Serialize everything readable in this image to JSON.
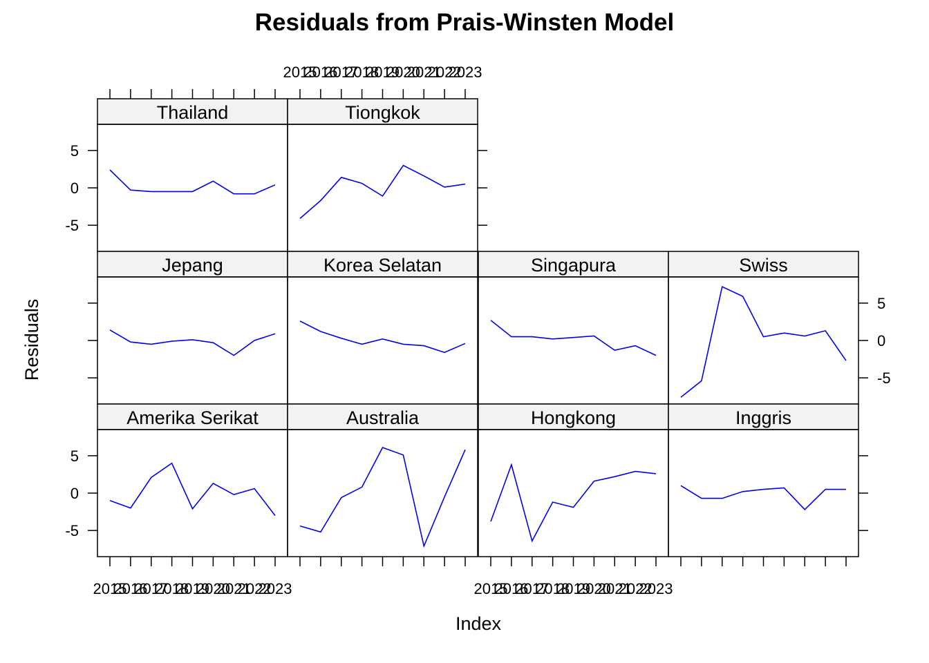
{
  "chart_data": {
    "type": "line",
    "title": "Residuals from Prais-Winsten Model",
    "xlabel": "Index",
    "ylabel": "Residuals",
    "x": [
      2015,
      2016,
      2017,
      2018,
      2019,
      2020,
      2021,
      2022,
      2023
    ],
    "x_tick_labels": [
      "2015",
      "2016",
      "2017",
      "2018",
      "2019",
      "2020",
      "2021",
      "2022",
      "2023"
    ],
    "y_ticks": [
      -5,
      0,
      5
    ],
    "y_tick_labels": [
      "-5",
      "0",
      "5"
    ],
    "ylim": [
      -8.5,
      8.5
    ],
    "grid": false,
    "line_color": "#0000ee",
    "strip_color": "#f2f2f2",
    "panels": [
      {
        "name": "Thailand",
        "values": [
          2.4,
          -0.3,
          -0.5,
          -0.5,
          -0.5,
          0.9,
          -0.8,
          -0.8,
          0.4
        ]
      },
      {
        "name": "Tiongkok",
        "values": [
          -4.1,
          -1.7,
          1.4,
          0.6,
          -1.1,
          3.0,
          1.6,
          0.1,
          0.5
        ]
      },
      {
        "name": "Jepang",
        "values": [
          1.4,
          -0.2,
          -0.5,
          -0.1,
          0.1,
          -0.3,
          -2.0,
          0.0,
          0.9
        ]
      },
      {
        "name": "Korea Selatan",
        "values": [
          2.6,
          1.2,
          0.3,
          -0.5,
          0.2,
          -0.5,
          -0.7,
          -1.6,
          -0.4
        ]
      },
      {
        "name": "Singapura",
        "values": [
          2.7,
          0.5,
          0.5,
          0.2,
          0.4,
          0.6,
          -1.3,
          -0.7,
          -2.0
        ]
      },
      {
        "name": "Swiss",
        "values": [
          -7.6,
          -5.4,
          7.2,
          5.9,
          0.5,
          1.0,
          0.6,
          1.3,
          -2.7
        ]
      },
      {
        "name": "Amerika Serikat",
        "values": [
          -1.0,
          -2.0,
          2.1,
          4.0,
          -2.1,
          1.3,
          -0.2,
          0.6,
          -3.0
        ]
      },
      {
        "name": "Australia",
        "values": [
          -4.4,
          -5.2,
          -0.6,
          0.8,
          6.1,
          5.1,
          -7.1,
          -0.5,
          5.8
        ]
      },
      {
        "name": "Hongkong",
        "values": [
          -3.8,
          3.8,
          -6.4,
          -1.2,
          -1.9,
          1.6,
          2.2,
          2.9,
          2.6
        ]
      },
      {
        "name": "Inggris",
        "values": [
          1.0,
          -0.7,
          -0.7,
          0.2,
          0.5,
          0.7,
          -2.2,
          0.5,
          0.5
        ]
      }
    ]
  }
}
